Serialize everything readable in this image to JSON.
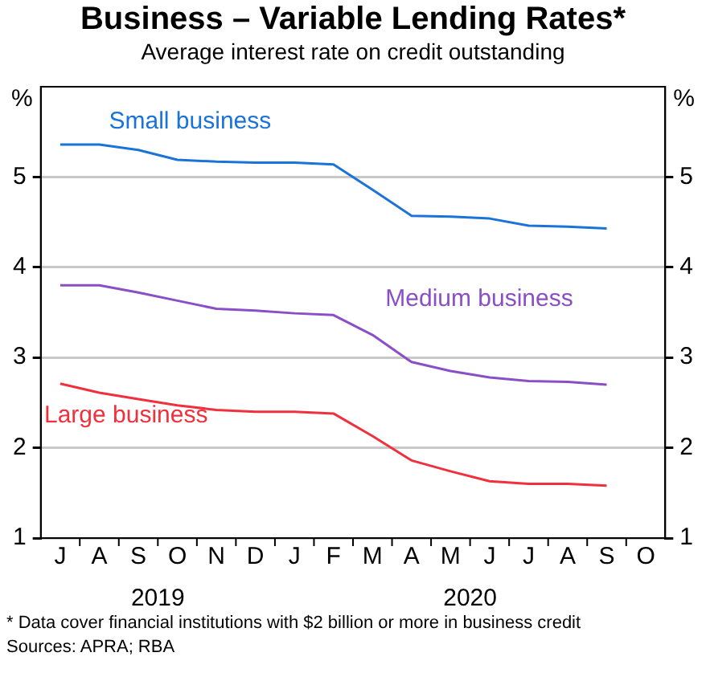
{
  "chart_data": {
    "type": "line",
    "title": "Business – Variable Lending Rates*",
    "subtitle": "Average interest rate on credit outstanding",
    "ylabel": "%",
    "y2label": "%",
    "categories": [
      "J",
      "A",
      "S",
      "O",
      "N",
      "D",
      "J",
      "F",
      "M",
      "A",
      "M",
      "J",
      "J",
      "A",
      "S",
      "O"
    ],
    "series": [
      {
        "name": "Small business",
        "color": "#1a73d9",
        "values": [
          5.36,
          5.36,
          5.3,
          5.19,
          5.17,
          5.16,
          5.16,
          5.14,
          4.86,
          4.57,
          4.56,
          4.54,
          4.46,
          4.45,
          4.43,
          null
        ]
      },
      {
        "name": "Medium business",
        "color": "#8a4fc7",
        "values": [
          3.8,
          3.8,
          3.72,
          3.63,
          3.54,
          3.52,
          3.49,
          3.47,
          3.25,
          2.95,
          2.85,
          2.78,
          2.74,
          2.73,
          2.7,
          null
        ]
      },
      {
        "name": "Large business",
        "color": "#f0303c",
        "values": [
          2.71,
          2.61,
          2.54,
          2.47,
          2.42,
          2.4,
          2.4,
          2.38,
          2.13,
          1.86,
          1.74,
          1.63,
          1.6,
          1.6,
          1.58,
          null
        ]
      }
    ],
    "ylim": [
      1,
      6
    ],
    "yticks": [
      1,
      2,
      3,
      4,
      5
    ],
    "y2lim": [
      1,
      6
    ],
    "y2ticks": [
      1,
      2,
      3,
      4,
      5
    ],
    "grid": "y",
    "legend": false,
    "marker": "none",
    "line_style": "solid",
    "annotations": [
      "2019",
      "2020",
      "* Data cover financial institutions with $2 billion or more in business credit",
      "Sources: APRA; RBA"
    ]
  }
}
